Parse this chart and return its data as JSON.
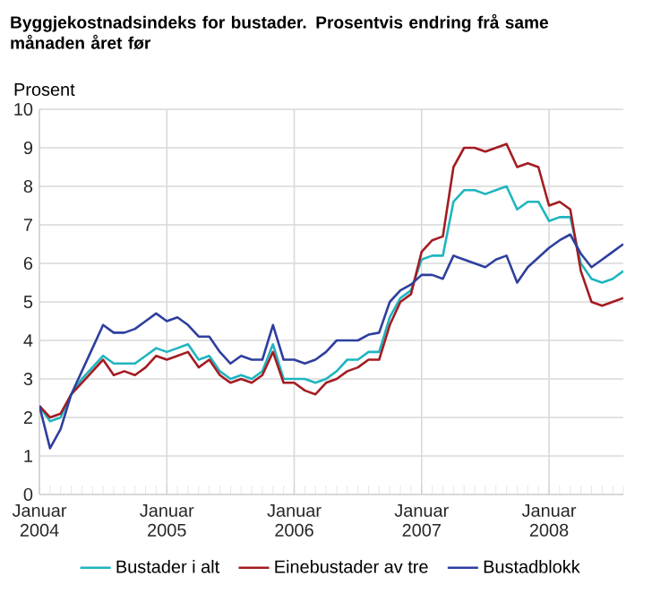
{
  "chart_data": {
    "type": "line",
    "title": "Byggjekostnadsindeks for bustader. Prosentvis endring frå same månaden året før",
    "ylabel": "Prosent",
    "x": [
      "2004-01",
      "2004-02",
      "2004-03",
      "2004-04",
      "2004-05",
      "2004-06",
      "2004-07",
      "2004-08",
      "2004-09",
      "2004-10",
      "2004-11",
      "2004-12",
      "2005-01",
      "2005-02",
      "2005-03",
      "2005-04",
      "2005-05",
      "2005-06",
      "2005-07",
      "2005-08",
      "2005-09",
      "2005-10",
      "2005-11",
      "2005-12",
      "2006-01",
      "2006-02",
      "2006-03",
      "2006-04",
      "2006-05",
      "2006-06",
      "2006-07",
      "2006-08",
      "2006-09",
      "2006-10",
      "2006-11",
      "2006-12",
      "2007-01",
      "2007-02",
      "2007-03",
      "2007-04",
      "2007-05",
      "2007-06",
      "2007-07",
      "2007-08",
      "2007-09",
      "2007-10",
      "2007-11",
      "2007-12",
      "2008-01",
      "2008-02",
      "2008-03",
      "2008-04",
      "2008-05",
      "2008-06",
      "2008-07",
      "2008-08"
    ],
    "series": [
      {
        "name": "Bustader i alt",
        "color": "#1fb5c0",
        "values": [
          2.3,
          1.9,
          2.0,
          2.6,
          3.0,
          3.3,
          3.6,
          3.4,
          3.4,
          3.4,
          3.6,
          3.8,
          3.7,
          3.8,
          3.9,
          3.5,
          3.6,
          3.2,
          3.0,
          3.1,
          3.0,
          3.2,
          3.9,
          3.0,
          3.0,
          3.0,
          2.9,
          3.0,
          3.2,
          3.5,
          3.5,
          3.7,
          3.7,
          4.6,
          5.1,
          5.3,
          6.1,
          6.2,
          6.2,
          7.6,
          7.9,
          7.9,
          7.8,
          7.9,
          8.0,
          7.4,
          7.6,
          7.6,
          7.1,
          7.2,
          7.2,
          6.0,
          5.6,
          5.5,
          5.6,
          5.8
        ]
      },
      {
        "name": "Einebustader av tre",
        "color": "#a31c22",
        "values": [
          2.3,
          2.0,
          2.1,
          2.6,
          2.9,
          3.2,
          3.5,
          3.1,
          3.2,
          3.1,
          3.3,
          3.6,
          3.5,
          3.6,
          3.7,
          3.3,
          3.5,
          3.1,
          2.9,
          3.0,
          2.9,
          3.1,
          3.7,
          2.9,
          2.9,
          2.7,
          2.6,
          2.9,
          3.0,
          3.2,
          3.3,
          3.5,
          3.5,
          4.4,
          5.0,
          5.2,
          6.3,
          6.6,
          6.7,
          8.5,
          9.0,
          9.0,
          8.9,
          9.0,
          9.1,
          8.5,
          8.6,
          8.5,
          7.5,
          7.6,
          7.4,
          5.8,
          5.0,
          4.9,
          5.0,
          5.1
        ]
      },
      {
        "name": "Bustadblokk",
        "color": "#2e3f9e",
        "values": [
          2.3,
          1.2,
          1.7,
          2.6,
          3.2,
          3.8,
          4.4,
          4.2,
          4.2,
          4.3,
          4.5,
          4.7,
          4.5,
          4.6,
          4.4,
          4.1,
          4.1,
          3.7,
          3.4,
          3.6,
          3.5,
          3.5,
          4.4,
          3.5,
          3.5,
          3.4,
          3.5,
          3.7,
          4.0,
          4.0,
          4.0,
          4.15,
          4.2,
          5.0,
          5.3,
          5.45,
          5.7,
          5.7,
          5.6,
          6.2,
          6.1,
          6.0,
          5.9,
          6.1,
          6.2,
          5.5,
          5.9,
          6.15,
          6.4,
          6.6,
          6.75,
          6.25,
          5.9,
          6.1,
          6.3,
          6.5
        ]
      }
    ],
    "xlim": [
      "2004-01",
      "2008-08"
    ],
    "xticks": [
      {
        "value": "2004-01",
        "label": "Januar 2004"
      },
      {
        "value": "2005-01",
        "label": "Januar 2005"
      },
      {
        "value": "2006-01",
        "label": "Januar 2006"
      },
      {
        "value": "2007-01",
        "label": "Januar 2007"
      },
      {
        "value": "2008-01",
        "label": "Januar 2008"
      }
    ],
    "ylim": [
      0,
      10
    ],
    "yticks": [
      0,
      1,
      2,
      3,
      4,
      5,
      6,
      7,
      8,
      9,
      10
    ],
    "grid": true,
    "legend": "bottom",
    "marker": "none",
    "line_style": "solid"
  }
}
